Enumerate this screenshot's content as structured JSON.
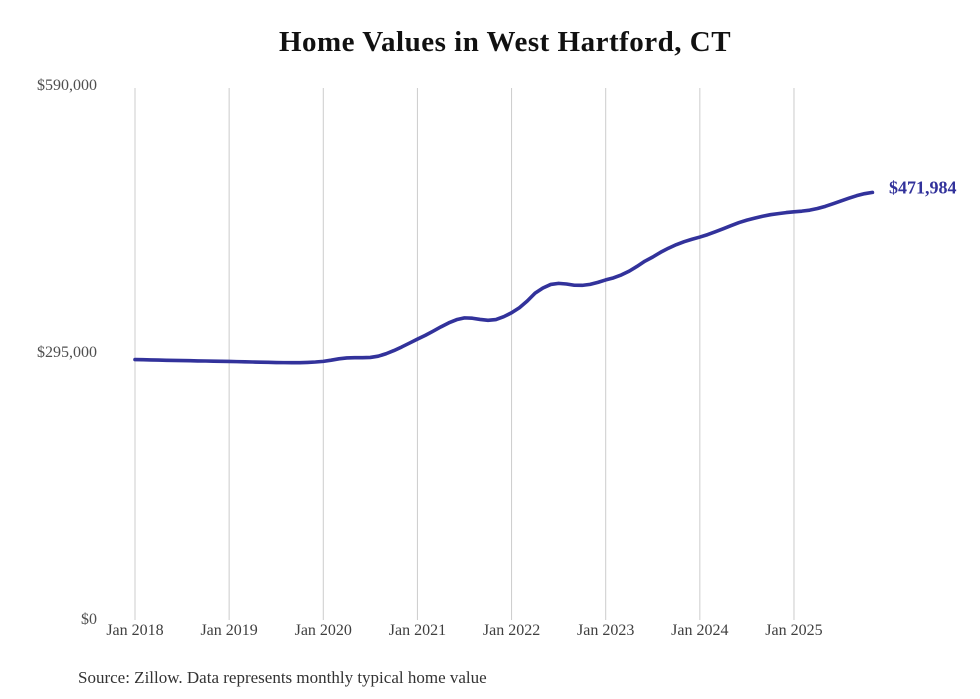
{
  "title": "Home Values in West Hartford, CT",
  "source_note": "Source: Zillow. Data represents monthly typical home value",
  "end_label": "$471,984",
  "colors": {
    "line": "#32329B",
    "gridline": "#cccccc",
    "annotation": "#32329B",
    "y_tick_text": "#4f4f4f",
    "x_tick_text": "#3f3f3f",
    "title_text": "#111111",
    "source_text": "#333333",
    "background": "#ffffff"
  },
  "chart_data": {
    "type": "line",
    "title": "Home Values in West Hartford, CT",
    "series_name": "Monthly typical home value",
    "unit": "USD",
    "x_start_month": "2018-01",
    "x_end_month": "2025-11",
    "x_tick_labels": [
      "Jan 2018",
      "Jan 2019",
      "Jan 2020",
      "Jan 2021",
      "Jan 2022",
      "Jan 2023",
      "Jan 2024",
      "Jan 2025"
    ],
    "y_tick_labels": [
      "$0",
      "$295,000",
      "$590,000"
    ],
    "y_tick_values": [
      0,
      295000,
      590000
    ],
    "ylim": [
      0,
      590000
    ],
    "grid": "vertical-only",
    "legend": "none",
    "end_annotation": "$471,984",
    "last_value": 471984,
    "values": [
      287500,
      287300,
      287100,
      286900,
      286700,
      286500,
      286400,
      286200,
      286000,
      285900,
      285700,
      285600,
      285400,
      285200,
      285000,
      284800,
      284600,
      284400,
      284200,
      284100,
      284000,
      284000,
      284300,
      284800,
      285500,
      286800,
      288300,
      289300,
      289600,
      289600,
      289800,
      291200,
      293900,
      297400,
      301400,
      305700,
      310000,
      314200,
      318800,
      323600,
      328000,
      331500,
      333500,
      333100,
      331800,
      330800,
      331600,
      334800,
      339100,
      344700,
      352100,
      360800,
      366500,
      370400,
      371600,
      370900,
      369500,
      369400,
      370500,
      372700,
      375400,
      377700,
      380900,
      385100,
      390400,
      396100,
      400700,
      405900,
      410400,
      414300,
      417600,
      420300,
      422700,
      425400,
      428600,
      432000,
      435400,
      438700,
      441400,
      443600,
      445700,
      447400,
      448600,
      449700,
      450600,
      451300,
      452400,
      454200,
      456600,
      459500,
      462600,
      465600,
      468400,
      470600,
      471984
    ]
  }
}
